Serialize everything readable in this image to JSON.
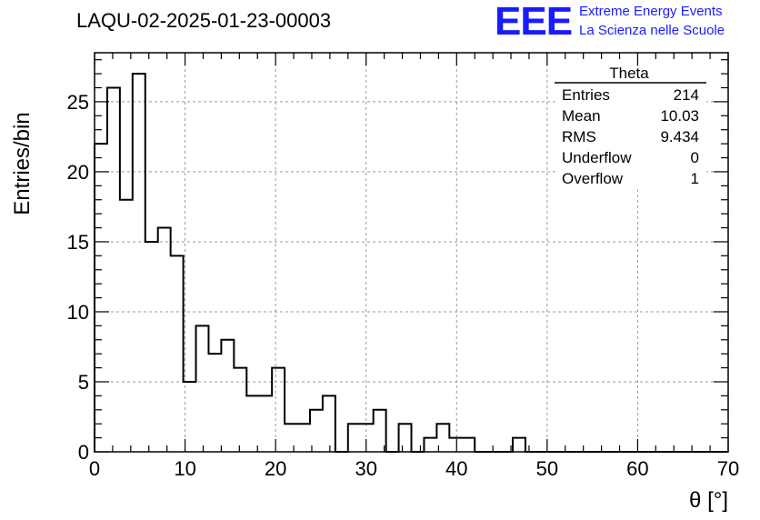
{
  "title": "LAQU-02-2025-01-23-00003",
  "logo": {
    "mark": "EEE",
    "line1": "Extreme Energy Events",
    "line2": "La Scienza nelle Scuole"
  },
  "stats": {
    "name": "Theta",
    "rows": [
      {
        "label": "Entries",
        "value": "214"
      },
      {
        "label": "Mean",
        "value": "10.03"
      },
      {
        "label": "RMS",
        "value": "9.434"
      },
      {
        "label": "Underflow",
        "value": "0"
      },
      {
        "label": "Overflow",
        "value": "1"
      }
    ]
  },
  "chart_data": {
    "type": "bar",
    "histogram": true,
    "xlabel": "θ [°]",
    "ylabel": "Entries/bin",
    "xlim": [
      0,
      70
    ],
    "ylim": [
      0,
      28.5
    ],
    "bin_width": 1.4,
    "x_ticks": [
      0,
      10,
      20,
      30,
      40,
      50,
      60,
      70
    ],
    "y_ticks": [
      0,
      5,
      10,
      15,
      20,
      25
    ],
    "grid": true,
    "values": [
      22,
      26,
      18,
      27,
      15,
      16,
      14,
      5,
      9,
      7,
      8,
      6,
      4,
      4,
      6,
      2,
      2,
      3,
      4,
      0,
      2,
      2,
      3,
      0,
      2,
      0,
      1,
      2,
      1,
      1,
      0,
      0,
      0,
      1,
      0,
      0,
      0,
      0,
      0,
      0,
      0,
      0,
      0,
      0,
      0,
      0,
      0,
      0,
      0,
      0
    ],
    "line_color": "#000000"
  }
}
